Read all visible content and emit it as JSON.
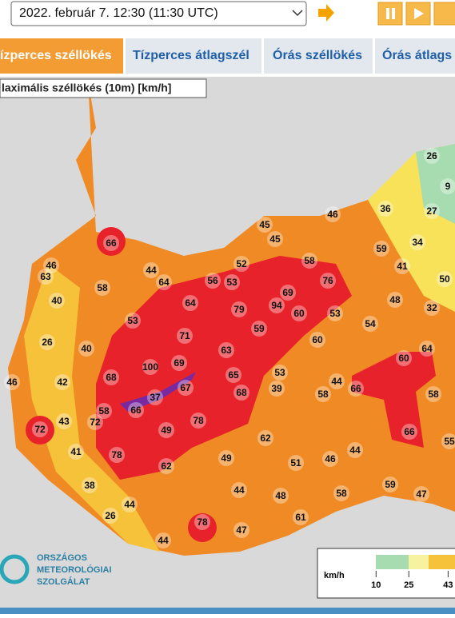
{
  "header": {
    "datetime": "2022. február 7. 12:30 (11:30  UTC)"
  },
  "tabs": [
    "ízperces széllökés",
    "Tízperces átlagszél",
    "Órás széllökés",
    "Órás átlags"
  ],
  "map": {
    "title": "laximális széllökés (10m) [km/h]",
    "stations": [
      26,
      9,
      27,
      36,
      46,
      45,
      45,
      66,
      59,
      34,
      46,
      63,
      44,
      52,
      58,
      41,
      50,
      64,
      56,
      53,
      76,
      58,
      69,
      40,
      64,
      79,
      94,
      60,
      53,
      48,
      32,
      53,
      54,
      59,
      71,
      26,
      40,
      60,
      63,
      64,
      69,
      100,
      60,
      68,
      65,
      53,
      46,
      42,
      44,
      67,
      37,
      68,
      39,
      58,
      66,
      58,
      58,
      66,
      72,
      43,
      72,
      78,
      49,
      62,
      66,
      55,
      41,
      78,
      49,
      51,
      46,
      44,
      62,
      38,
      44,
      48,
      58,
      59,
      47,
      44,
      26,
      61,
      78,
      47,
      44
    ]
  },
  "legend": {
    "unit": "km/h",
    "ticks": [
      10,
      25,
      43
    ]
  },
  "logo": {
    "line1": "ORSZÁGOS",
    "line2": "METEOROLÓGIAI",
    "line3": "SZOLGÁLAT"
  }
}
